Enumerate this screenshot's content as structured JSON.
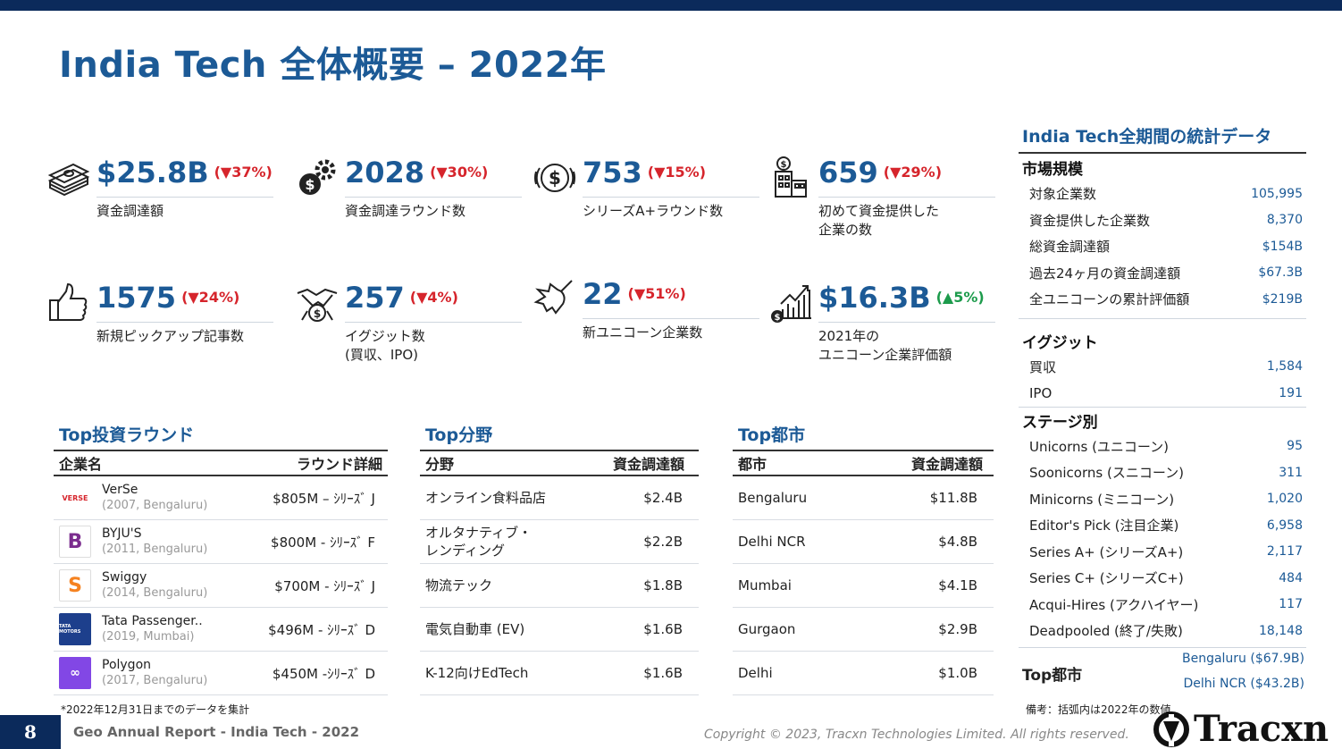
{
  "page": {
    "title": "India Tech 全体概要 – 2022年",
    "number": "8",
    "footer_left": "Geo Annual Report - India Tech - 2022",
    "copyright": "Copyright © 2023, Tracxn Technologies Limited. All rights reserved.",
    "brand": "Tracxn"
  },
  "metrics": [
    {
      "value": "$25.8B",
      "change": "(▼37%)",
      "direction": "down",
      "label": "資金調達額",
      "icon": "cash-stack-icon"
    },
    {
      "value": "2028",
      "change": "(▼30%)",
      "direction": "down",
      "label": "資金調達ラウンド数",
      "icon": "dollar-gear-icon"
    },
    {
      "value": "753",
      "change": "(▼15%)",
      "direction": "down",
      "label": "シリーズA+ラウンド数",
      "icon": "dollar-coin-icon"
    },
    {
      "value": "659",
      "change": "(▼29%)",
      "direction": "down",
      "label": "初めて資金提供した\n企業の数",
      "icon": "building-dollar-icon"
    },
    {
      "value": "1575",
      "change": "(▼24%)",
      "direction": "down",
      "label": "新規ピックアップ記事数",
      "icon": "thumbs-up-icon"
    },
    {
      "value": "257",
      "change": "(▼4%)",
      "direction": "down",
      "label": "イグジット数\n(買収、IPO)",
      "icon": "handshake-icon"
    },
    {
      "value": "22",
      "change": "(▼51%)",
      "direction": "down",
      "label": "新ユニコーン企業数",
      "icon": "unicorn-icon"
    },
    {
      "value": "$16.3B",
      "change": "(▲5%)",
      "direction": "up",
      "label": "2021年の\nユニコーン企業評価額",
      "icon": "growth-chart-icon"
    }
  ],
  "top_rounds": {
    "title": "Top投資ラウンド",
    "headers": [
      "企業名",
      "ラウンド詳細"
    ],
    "rows": [
      {
        "name": "VerSe",
        "sub": "(2007, Bengaluru)",
        "detail": "$805M – ｼﾘｰｽﾞ J",
        "logo_text": "VERSE",
        "logo_color": "#ffffff"
      },
      {
        "name": "BYJU'S",
        "sub": "(2011, Bengaluru)",
        "detail": "$800M - ｼﾘｰｽﾞ F",
        "logo_text": "B",
        "logo_color": "#7b2d8e"
      },
      {
        "name": "Swiggy",
        "sub": "(2014, Bengaluru)",
        "detail": "$700M - ｼﾘｰｽﾞ J",
        "logo_text": "S",
        "logo_color": "#f58220"
      },
      {
        "name": "Tata Passenger..",
        "sub": "(2019, Mumbai)",
        "detail": "$496M - ｼﾘｰｽﾞ D",
        "logo_text": "TATA MOTORS",
        "logo_color": "#1d3f8c"
      },
      {
        "name": "Polygon",
        "sub": "(2017, Bengaluru)",
        "detail": "$450M -ｼﾘｰｽﾞ D",
        "logo_text": "∞",
        "logo_color": "#8247e5"
      }
    ]
  },
  "top_sectors": {
    "title": "Top分野",
    "headers": [
      "分野",
      "資金調達額"
    ],
    "rows": [
      {
        "name": "オンライン食料品店",
        "value": "$2.4B"
      },
      {
        "name": "オルタナティブ・\nレンディング",
        "value": "$2.2B"
      },
      {
        "name": "物流テック",
        "value": "$1.8B"
      },
      {
        "name": "電気自動車 (EV)",
        "value": "$1.6B"
      },
      {
        "name": "K-12向けEdTech",
        "value": "$1.6B"
      }
    ]
  },
  "top_cities": {
    "title": "Top都市",
    "headers": [
      "都市",
      "資金調達額"
    ],
    "rows": [
      {
        "name": "Bengaluru",
        "value": "$11.8B"
      },
      {
        "name": "Delhi NCR",
        "value": "$4.8B"
      },
      {
        "name": "Mumbai",
        "value": "$4.1B"
      },
      {
        "name": "Gurgaon",
        "value": "$2.9B"
      },
      {
        "name": "Delhi",
        "value": "$1.0B"
      }
    ]
  },
  "footnote": "*2022年12月31日までのデータを集計",
  "stats": {
    "title": "India Tech全期間の統計データ",
    "groups": [
      {
        "label": "市場規模",
        "items": [
          {
            "label": "対象企業数",
            "value": "105,995"
          },
          {
            "label": "資金提供した企業数",
            "value": "8,370"
          },
          {
            "label": "総資金調達額",
            "value": "$154B"
          },
          {
            "label": "過去24ヶ月の資金調達額",
            "value": "$67.3B"
          },
          {
            "label": "全ユニコーンの累計評価額",
            "value": "$219B"
          }
        ]
      },
      {
        "label": "イグジット",
        "items": [
          {
            "label": "買収",
            "value": "1,584"
          },
          {
            "label": "IPO",
            "value": "191"
          }
        ]
      },
      {
        "label": "ステージ別",
        "items": [
          {
            "label": "Unicorns (ユニコーン)",
            "value": "95"
          },
          {
            "label": "Soonicorns (スニコーン)",
            "value": "311"
          },
          {
            "label": "Minicorns (ミニコーン)",
            "value": "1,020"
          },
          {
            "label": "Editor's Pick (注目企業)",
            "value": "6,958"
          },
          {
            "label": "Series A+ (シリーズA+)",
            "value": "2,117"
          },
          {
            "label": "Series C+ (シリーズC+)",
            "value": "484"
          },
          {
            "label": "Acqui-Hires (アクハイヤー)",
            "value": "117"
          },
          {
            "label": "Deadpooled (終了/失敗)",
            "value": "18,148"
          }
        ]
      }
    ],
    "top_city_label": "Top都市",
    "top_cities": [
      "Bengaluru ($67.9B)",
      "Delhi NCR ($43.2B)"
    ],
    "note": "備考：括弧内は2022年の数値"
  },
  "colors": {
    "accent": "#1c5a96",
    "navy": "#0b2a5b",
    "down": "#d6252c",
    "up": "#1d9b4c"
  }
}
